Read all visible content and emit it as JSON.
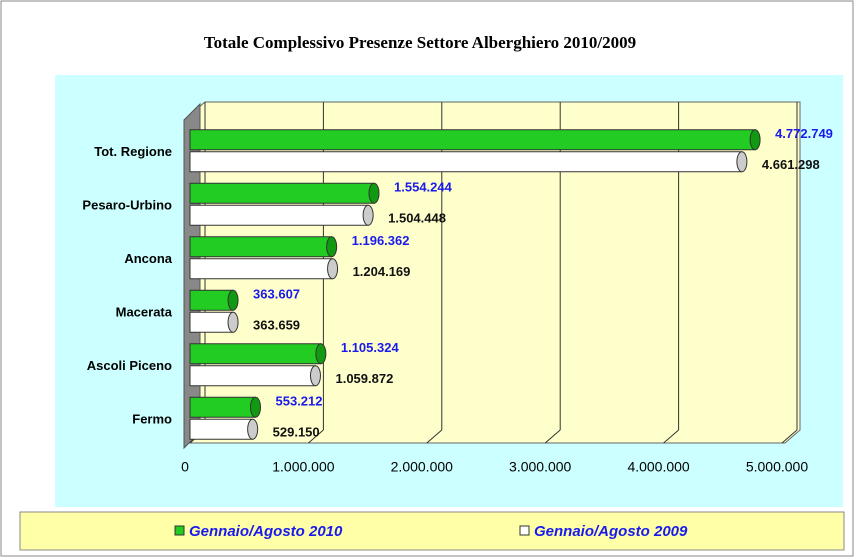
{
  "chart_data": {
    "type": "bar",
    "orientation": "horizontal",
    "title": "Totale Complessivo Presenze Settore Alberghiero 2010/2009",
    "categories": [
      "Tot. Regione",
      "Pesaro-Urbino",
      "Ancona",
      "Macerata",
      "Ascoli Piceno",
      "Fermo"
    ],
    "series": [
      {
        "name": "Gennaio/Agosto 2010",
        "color": "#22cc22",
        "label_color": "#1a1aee",
        "values": [
          4772749,
          1554244,
          1196362,
          363607,
          1105324,
          553212
        ],
        "value_labels": [
          "4.772.749",
          "1.554.244",
          "1.196.362",
          "363.607",
          "1.105.324",
          "553.212"
        ]
      },
      {
        "name": "Gennaio/Agosto 2009",
        "color": "#ffffff",
        "label_color": "#111111",
        "values": [
          4661298,
          1504448,
          1204169,
          363659,
          1059872,
          529150
        ],
        "value_labels": [
          "4.661.298",
          "1.504.448",
          "1.204.169",
          "363.659",
          "1.059.872",
          "529.150"
        ]
      }
    ],
    "xlim": [
      0,
      5000000
    ],
    "xticks": [
      0,
      {
        "value": 1000000,
        "label": "1.000.000"
      },
      {
        "value": 2000000,
        "label": "2.000.000"
      },
      {
        "value": 3000000,
        "label": "3.000.000"
      },
      {
        "value": 4000000,
        "label": "4.000.000"
      },
      {
        "value": 5000000,
        "label": "5.000.000"
      }
    ],
    "grid": true,
    "legend": "bottom"
  }
}
